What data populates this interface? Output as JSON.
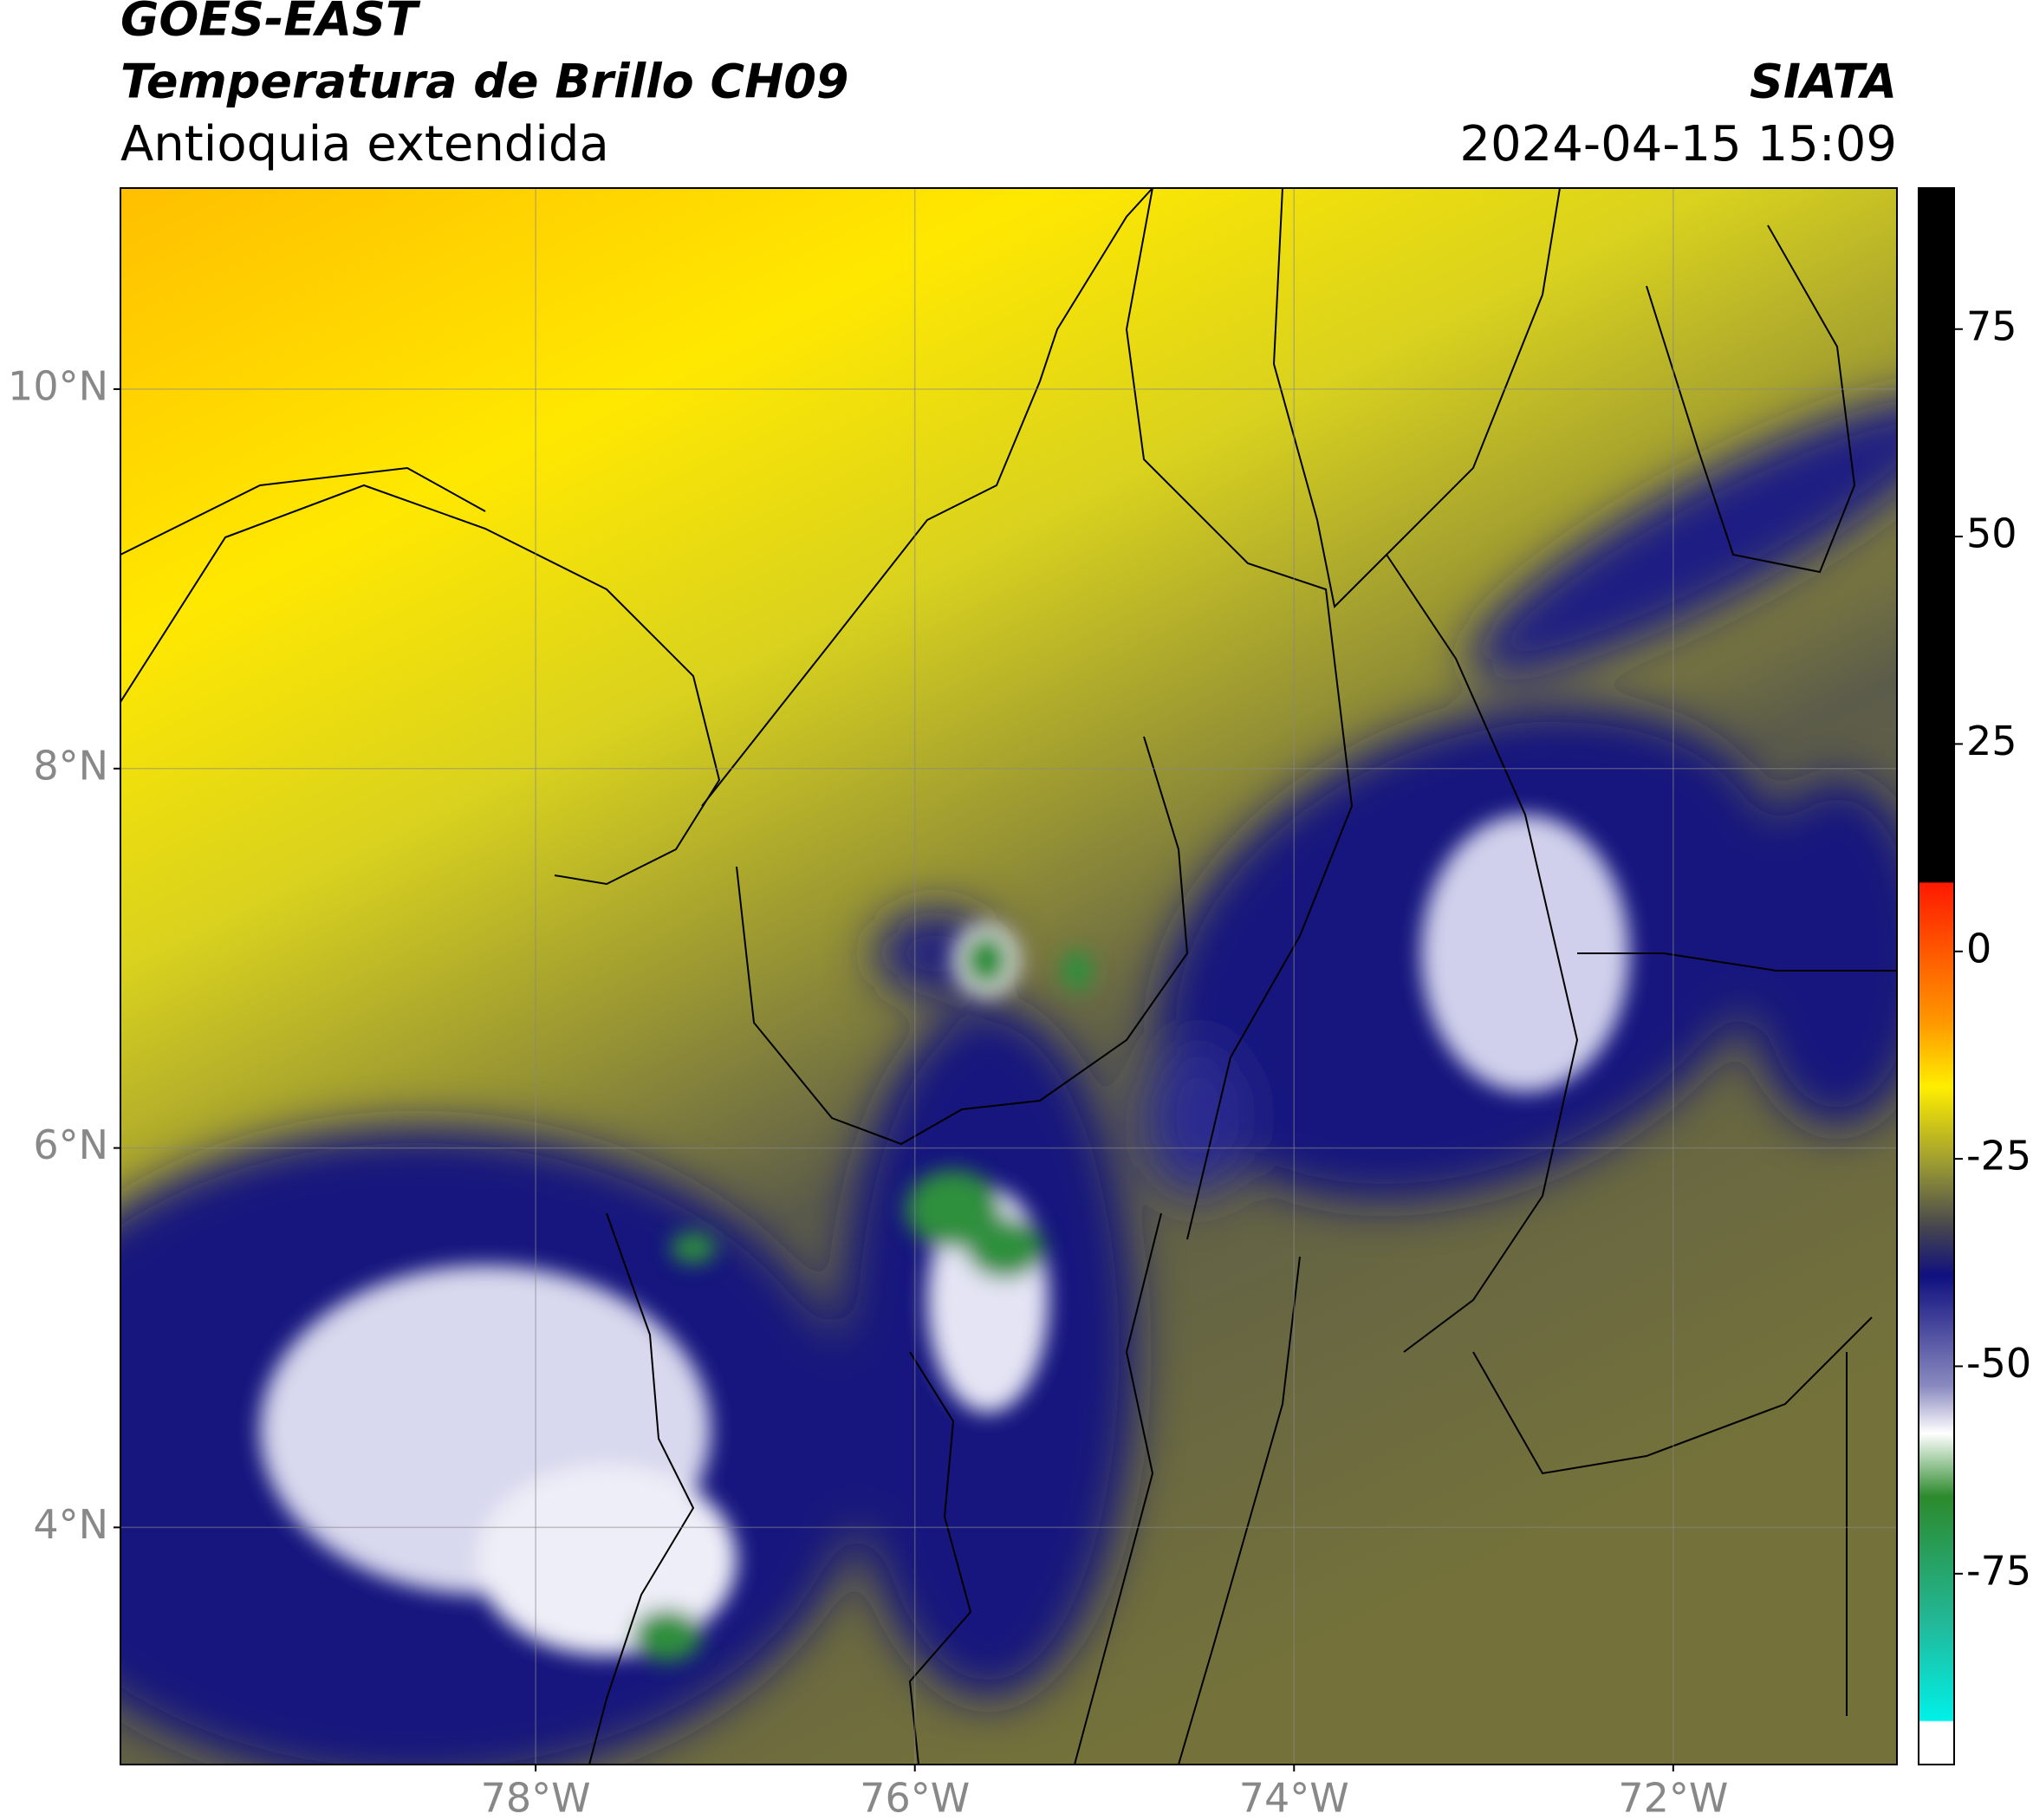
{
  "chart_data": {
    "type": "map",
    "title": "GOES-EAST",
    "subtitle": "Temperatura de Brillo CH09",
    "region": "Antioquia extendida",
    "source": "SIATA",
    "timestamp": "2024-04-15 15:09",
    "xlim": [
      -80.19,
      -70.82
    ],
    "ylim": [
      2.75,
      11.06
    ],
    "xticks": [
      {
        "value": -78,
        "label": "78°W"
      },
      {
        "value": -76,
        "label": "76°W"
      },
      {
        "value": -74,
        "label": "74°W"
      },
      {
        "value": -72,
        "label": "72°W"
      }
    ],
    "yticks": [
      {
        "value": 10,
        "label": "10°N"
      },
      {
        "value": 8,
        "label": "8°N"
      },
      {
        "value": 6,
        "label": "6°N"
      },
      {
        "value": 4,
        "label": "4°N"
      }
    ],
    "grid": true,
    "colorbar": {
      "clim": [
        -98,
        92
      ],
      "ticks": [
        75,
        50,
        25,
        0,
        -25,
        -50,
        -75
      ]
    }
  }
}
